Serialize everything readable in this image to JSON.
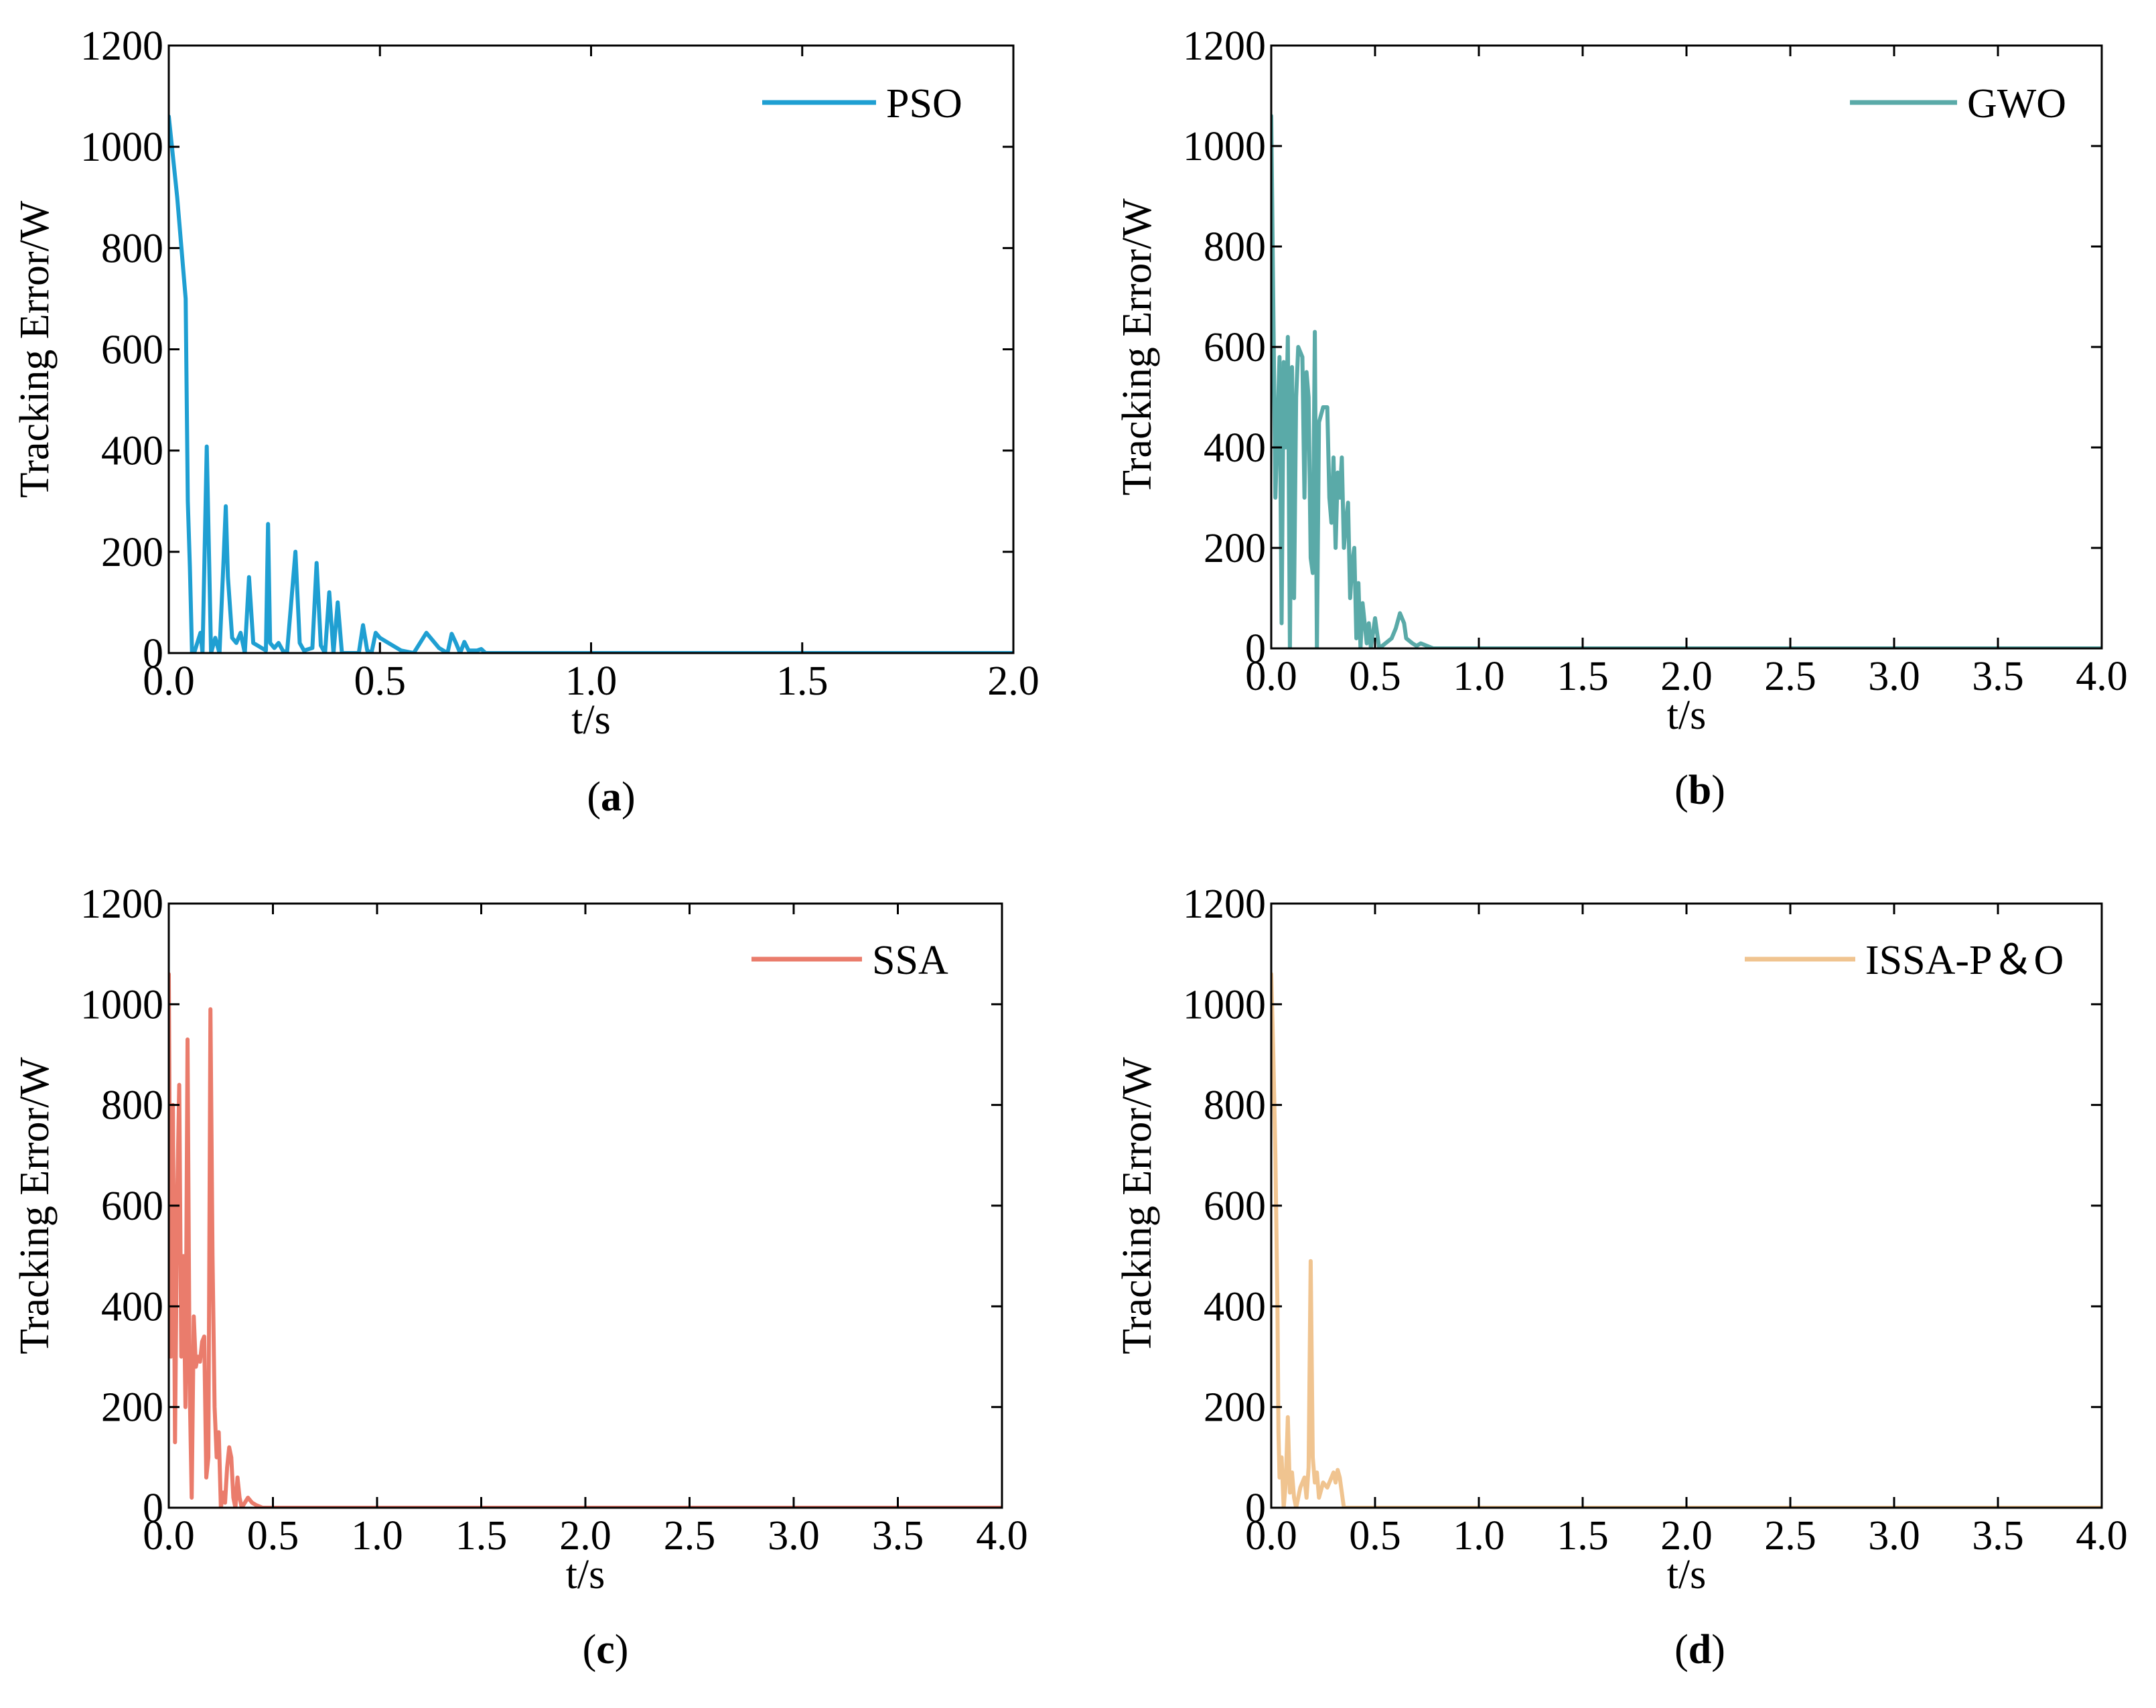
{
  "chart_data": [
    {
      "type": "line",
      "panel_label": "(a)",
      "panel_letter": "a",
      "series": [
        {
          "name": "PSO",
          "color": "#1f9fd2",
          "points": [
            [
              0,
              1060
            ],
            [
              0.02,
              900
            ],
            [
              0.04,
              700
            ],
            [
              0.045,
              300
            ],
            [
              0.05,
              170
            ],
            [
              0.055,
              0
            ],
            [
              0.06,
              0
            ],
            [
              0.075,
              40
            ],
            [
              0.08,
              0
            ],
            [
              0.09,
              408
            ],
            [
              0.1,
              0
            ],
            [
              0.11,
              30
            ],
            [
              0.12,
              0
            ],
            [
              0.13,
              190
            ],
            [
              0.135,
              290
            ],
            [
              0.14,
              150
            ],
            [
              0.15,
              30
            ],
            [
              0.16,
              20
            ],
            [
              0.17,
              40
            ],
            [
              0.18,
              0
            ],
            [
              0.19,
              150
            ],
            [
              0.2,
              20
            ],
            [
              0.22,
              10
            ],
            [
              0.23,
              5
            ],
            [
              0.235,
              255
            ],
            [
              0.24,
              20
            ],
            [
              0.25,
              10
            ],
            [
              0.26,
              20
            ],
            [
              0.27,
              5
            ],
            [
              0.28,
              0
            ],
            [
              0.3,
              200
            ],
            [
              0.31,
              20
            ],
            [
              0.32,
              5
            ],
            [
              0.34,
              10
            ],
            [
              0.35,
              178
            ],
            [
              0.36,
              15
            ],
            [
              0.37,
              0
            ],
            [
              0.38,
              120
            ],
            [
              0.39,
              0
            ],
            [
              0.4,
              100
            ],
            [
              0.41,
              0
            ],
            [
              0.45,
              0
            ],
            [
              0.46,
              55
            ],
            [
              0.47,
              5
            ],
            [
              0.48,
              0
            ],
            [
              0.49,
              40
            ],
            [
              0.5,
              30
            ],
            [
              0.52,
              20
            ],
            [
              0.55,
              5
            ],
            [
              0.58,
              0
            ],
            [
              0.61,
              40
            ],
            [
              0.64,
              10
            ],
            [
              0.66,
              0
            ],
            [
              0.67,
              38
            ],
            [
              0.68,
              20
            ],
            [
              0.69,
              0
            ],
            [
              0.7,
              22
            ],
            [
              0.71,
              5
            ],
            [
              0.73,
              5
            ],
            [
              0.74,
              8
            ],
            [
              0.75,
              0
            ],
            [
              1.0,
              0
            ],
            [
              2.0,
              0
            ]
          ]
        }
      ],
      "xlabel": "t/s",
      "ylabel": "Tracking Error/W",
      "xlim": [
        0,
        2.0
      ],
      "ylim": [
        0,
        1200
      ],
      "xticks": [
        0,
        0.5,
        1.0,
        1.5,
        2.0
      ],
      "xtick_labels": [
        "0.0",
        "0.5",
        "1.0",
        "1.5",
        "2.0"
      ],
      "yticks": [
        0,
        200,
        400,
        600,
        800,
        1000,
        1200
      ],
      "ytick_labels": [
        "0",
        "200",
        "400",
        "600",
        "800",
        "1000",
        "1200"
      ],
      "legend": "top-right",
      "grid": false
    },
    {
      "type": "line",
      "panel_label": "(b)",
      "panel_letter": "b",
      "series": [
        {
          "name": "GWO",
          "color": "#5aaaa8",
          "points": [
            [
              0,
              1060
            ],
            [
              0.02,
              300
            ],
            [
              0.04,
              580
            ],
            [
              0.05,
              50
            ],
            [
              0.06,
              570
            ],
            [
              0.07,
              400
            ],
            [
              0.08,
              620
            ],
            [
              0.09,
              0
            ],
            [
              0.1,
              560
            ],
            [
              0.11,
              100
            ],
            [
              0.12,
              500
            ],
            [
              0.13,
              600
            ],
            [
              0.15,
              580
            ],
            [
              0.16,
              300
            ],
            [
              0.17,
              550
            ],
            [
              0.18,
              500
            ],
            [
              0.19,
              180
            ],
            [
              0.2,
              150
            ],
            [
              0.21,
              630
            ],
            [
              0.22,
              0
            ],
            [
              0.23,
              450
            ],
            [
              0.25,
              480
            ],
            [
              0.27,
              480
            ],
            [
              0.28,
              300
            ],
            [
              0.29,
              250
            ],
            [
              0.3,
              380
            ],
            [
              0.31,
              200
            ],
            [
              0.32,
              350
            ],
            [
              0.33,
              300
            ],
            [
              0.34,
              380
            ],
            [
              0.35,
              200
            ],
            [
              0.36,
              250
            ],
            [
              0.37,
              290
            ],
            [
              0.38,
              100
            ],
            [
              0.39,
              170
            ],
            [
              0.4,
              200
            ],
            [
              0.41,
              20
            ],
            [
              0.42,
              130
            ],
            [
              0.43,
              0
            ],
            [
              0.44,
              90
            ],
            [
              0.46,
              10
            ],
            [
              0.47,
              50
            ],
            [
              0.48,
              0
            ],
            [
              0.5,
              60
            ],
            [
              0.52,
              0
            ],
            [
              0.55,
              10
            ],
            [
              0.58,
              20
            ],
            [
              0.6,
              40
            ],
            [
              0.62,
              70
            ],
            [
              0.64,
              50
            ],
            [
              0.65,
              20
            ],
            [
              0.68,
              10
            ],
            [
              0.7,
              5
            ],
            [
              0.72,
              10
            ],
            [
              0.75,
              5
            ],
            [
              0.78,
              0
            ],
            [
              1.0,
              0
            ],
            [
              4.0,
              0
            ]
          ]
        }
      ],
      "xlabel": "t/s",
      "ylabel": "Tracking Error/W",
      "xlim": [
        0,
        4.0
      ],
      "ylim": [
        0,
        1200
      ],
      "xticks": [
        0,
        0.5,
        1.0,
        1.5,
        2.0,
        2.5,
        3.0,
        3.5,
        4.0
      ],
      "xtick_labels": [
        "0.0",
        "0.5",
        "1.0",
        "1.5",
        "2.0",
        "2.5",
        "3.0",
        "3.5",
        "4.0"
      ],
      "yticks": [
        0,
        200,
        400,
        600,
        800,
        1000,
        1200
      ],
      "ytick_labels": [
        "0",
        "200",
        "400",
        "600",
        "800",
        "1000",
        "1200"
      ],
      "legend": "top-right",
      "grid": false
    },
    {
      "type": "line",
      "panel_label": "(c)",
      "panel_letter": "c",
      "series": [
        {
          "name": "SSA",
          "color": "#ea7c6c",
          "points": [
            [
              0,
              1060
            ],
            [
              0.01,
              300
            ],
            [
              0.02,
              800
            ],
            [
              0.03,
              130
            ],
            [
              0.04,
              600
            ],
            [
              0.05,
              840
            ],
            [
              0.06,
              300
            ],
            [
              0.07,
              500
            ],
            [
              0.08,
              200
            ],
            [
              0.09,
              930
            ],
            [
              0.1,
              250
            ],
            [
              0.11,
              20
            ],
            [
              0.12,
              380
            ],
            [
              0.13,
              280
            ],
            [
              0.14,
              300
            ],
            [
              0.15,
              290
            ],
            [
              0.16,
              330
            ],
            [
              0.17,
              340
            ],
            [
              0.18,
              60
            ],
            [
              0.19,
              100
            ],
            [
              0.2,
              990
            ],
            [
              0.21,
              500
            ],
            [
              0.22,
              200
            ],
            [
              0.23,
              100
            ],
            [
              0.24,
              150
            ],
            [
              0.25,
              0
            ],
            [
              0.26,
              30
            ],
            [
              0.27,
              10
            ],
            [
              0.28,
              80
            ],
            [
              0.29,
              120
            ],
            [
              0.3,
              100
            ],
            [
              0.31,
              20
            ],
            [
              0.32,
              0
            ],
            [
              0.33,
              60
            ],
            [
              0.34,
              20
            ],
            [
              0.35,
              0
            ],
            [
              0.38,
              20
            ],
            [
              0.4,
              10
            ],
            [
              0.42,
              5
            ],
            [
              0.45,
              0
            ],
            [
              1.0,
              0
            ],
            [
              4.0,
              0
            ]
          ]
        }
      ],
      "xlabel": "t/s",
      "ylabel": "Tracking Error/W",
      "xlim": [
        0,
        4.0
      ],
      "ylim": [
        0,
        1200
      ],
      "xticks": [
        0,
        0.5,
        1.0,
        1.5,
        2.0,
        2.5,
        3.0,
        3.5,
        4.0
      ],
      "xtick_labels": [
        "0.0",
        "0.5",
        "1.0",
        "1.5",
        "2.0",
        "2.5",
        "3.0",
        "3.5",
        "4.0"
      ],
      "yticks": [
        0,
        200,
        400,
        600,
        800,
        1000,
        1200
      ],
      "ytick_labels": [
        "0",
        "200",
        "400",
        "600",
        "800",
        "1000",
        "1200"
      ],
      "legend": "top-right",
      "grid": false
    },
    {
      "type": "line",
      "panel_label": "(d)",
      "panel_letter": "d",
      "series": [
        {
          "name": "ISSA-P＆O",
          "color": "#f0c490",
          "points": [
            [
              0,
              1060
            ],
            [
              0.01,
              900
            ],
            [
              0.02,
              700
            ],
            [
              0.03,
              400
            ],
            [
              0.035,
              150
            ],
            [
              0.04,
              60
            ],
            [
              0.05,
              100
            ],
            [
              0.06,
              0
            ],
            [
              0.07,
              50
            ],
            [
              0.08,
              180
            ],
            [
              0.09,
              30
            ],
            [
              0.1,
              70
            ],
            [
              0.11,
              20
            ],
            [
              0.12,
              0
            ],
            [
              0.14,
              40
            ],
            [
              0.16,
              60
            ],
            [
              0.17,
              20
            ],
            [
              0.18,
              80
            ],
            [
              0.19,
              490
            ],
            [
              0.2,
              100
            ],
            [
              0.21,
              50
            ],
            [
              0.22,
              70
            ],
            [
              0.23,
              20
            ],
            [
              0.25,
              50
            ],
            [
              0.27,
              40
            ],
            [
              0.29,
              60
            ],
            [
              0.3,
              70
            ],
            [
              0.31,
              50
            ],
            [
              0.32,
              75
            ],
            [
              0.33,
              60
            ],
            [
              0.34,
              30
            ],
            [
              0.35,
              0
            ],
            [
              0.4,
              0
            ],
            [
              1.0,
              0
            ],
            [
              4.0,
              0
            ]
          ]
        }
      ],
      "xlabel": "t/s",
      "ylabel": "Tracking Error/W",
      "xlim": [
        0,
        4.0
      ],
      "ylim": [
        0,
        1200
      ],
      "xticks": [
        0,
        0.5,
        1.0,
        1.5,
        2.0,
        2.5,
        3.0,
        3.5,
        4.0
      ],
      "xtick_labels": [
        "0.0",
        "0.5",
        "1.0",
        "1.5",
        "2.0",
        "2.5",
        "3.0",
        "3.5",
        "4.0"
      ],
      "yticks": [
        0,
        200,
        400,
        600,
        800,
        1000,
        1200
      ],
      "ytick_labels": [
        "0",
        "200",
        "400",
        "600",
        "800",
        "1000",
        "1200"
      ],
      "legend": "top-right",
      "grid": false
    }
  ]
}
